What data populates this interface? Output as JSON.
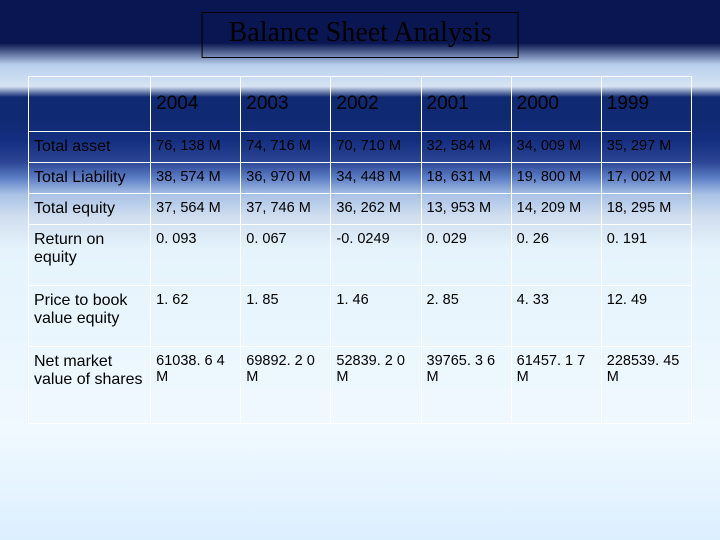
{
  "title": "Balance Sheet Analysis",
  "columns": [
    "2004",
    "2003",
    "2002",
    "2001",
    "2000",
    "1999"
  ],
  "rows": [
    {
      "label": "Total asset",
      "values": [
        "76, 138 M",
        "74, 716 M",
        "70, 710 M",
        "32, 584 M",
        "34, 009 M",
        "35, 297 M"
      ]
    },
    {
      "label": "Total Liability",
      "values": [
        "38, 574 M",
        "36, 970 M",
        "34, 448 M",
        "18, 631 M",
        "19, 800 M",
        "17, 002 M"
      ]
    },
    {
      "label": "Total equity",
      "values": [
        "37, 564 M",
        "37, 746 M",
        "36, 262 M",
        "13, 953 M",
        "14, 209 M",
        "18, 295 M"
      ]
    },
    {
      "label": "Return on equity",
      "values": [
        "0. 093",
        "0. 067",
        "-0. 0249",
        "0. 029",
        "0. 26",
        "0. 191"
      ]
    },
    {
      "label": "Price to book value equity",
      "values": [
        "1. 62",
        "1. 85",
        "1. 46",
        "2. 85",
        "4. 33",
        "12. 49"
      ]
    },
    {
      "label": "Net market value of shares",
      "values": [
        "61038. 6 4 M",
        "69892. 2 0 M",
        "52839. 2 0 M",
        "39765. 3 6 M",
        "61457. 1 7 M",
        "228539. 45 M"
      ]
    }
  ],
  "style": {
    "table_border_color": "#ffffff",
    "header_font": "Arial",
    "body_font": "Arial",
    "title_font": "Times New Roman",
    "title_fontsize": 28,
    "header_fontsize": 19,
    "label_fontsize": 16,
    "cell_fontsize": 14.5
  }
}
